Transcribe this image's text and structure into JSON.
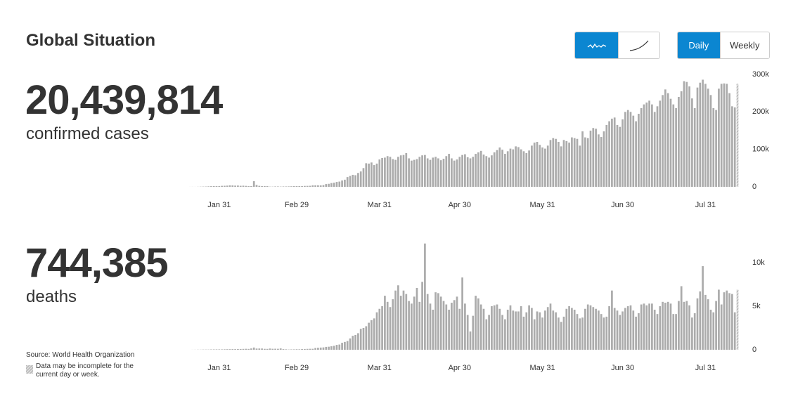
{
  "header": {
    "title": "Global Situation"
  },
  "controls": {
    "periods": [
      "Daily",
      "Weekly"
    ]
  },
  "chart_data": [
    {
      "type": "bar",
      "total": "20,439,814",
      "label": "confirmed cases",
      "color": "#ababab",
      "categories": [
        null,
        null,
        null,
        null,
        null,
        null,
        null,
        null,
        null,
        null,
        null,
        "Jan 31",
        null,
        null,
        null,
        null,
        null,
        null,
        null,
        null,
        null,
        null,
        null,
        null,
        null,
        null,
        null,
        null,
        null,
        null,
        null,
        null,
        null,
        null,
        null,
        null,
        null,
        null,
        null,
        null,
        "Feb 29",
        null,
        null,
        null,
        null,
        null,
        null,
        null,
        null,
        null,
        null,
        null,
        null,
        null,
        null,
        null,
        null,
        null,
        null,
        null,
        null,
        null,
        null,
        null,
        null,
        null,
        null,
        null,
        null,
        null,
        null,
        "Mar 31",
        null,
        null,
        null,
        null,
        null,
        null,
        null,
        null,
        null,
        null,
        null,
        null,
        null,
        null,
        null,
        null,
        null,
        null,
        null,
        null,
        null,
        null,
        null,
        null,
        null,
        null,
        null,
        null,
        null,
        "Apr 30",
        null,
        null,
        null,
        null,
        null,
        null,
        null,
        null,
        null,
        null,
        null,
        null,
        null,
        null,
        null,
        null,
        null,
        null,
        null,
        null,
        null,
        null,
        null,
        null,
        null,
        null,
        null,
        null,
        null,
        null,
        "May 31",
        null,
        null,
        null,
        null,
        null,
        null,
        null,
        null,
        null,
        null,
        null,
        null,
        null,
        null,
        null,
        null,
        null,
        null,
        null,
        null,
        null,
        null,
        null,
        null,
        null,
        null,
        null,
        null,
        null,
        "Jun 30",
        null,
        null,
        null,
        null,
        null,
        null,
        null,
        null,
        null,
        null,
        null,
        null,
        null,
        null,
        null,
        null,
        null,
        null,
        null,
        null,
        null,
        null,
        null,
        null,
        null,
        null,
        null,
        null,
        null,
        null,
        "Jul 31",
        null,
        null,
        null,
        null,
        null,
        null,
        null,
        null,
        null,
        null,
        null,
        null
      ],
      "values": [
        100,
        150,
        100,
        250,
        500,
        700,
        800,
        1300,
        1700,
        2000,
        2100,
        2100,
        2600,
        2800,
        3200,
        3900,
        3700,
        3200,
        3400,
        2700,
        3000,
        2500,
        2000,
        2000,
        15000,
        5000,
        2600,
        2000,
        2100,
        1900,
        600,
        600,
        1000,
        1000,
        700,
        1000,
        1000,
        1200,
        1500,
        1800,
        2000,
        1900,
        2000,
        2400,
        2500,
        2700,
        4000,
        4000,
        4000,
        3800,
        4600,
        7300,
        8000,
        10000,
        11000,
        13000,
        14000,
        17000,
        19000,
        26000,
        29000,
        32000,
        31000,
        37000,
        41000,
        50000,
        63000,
        62000,
        65000,
        58000,
        62000,
        73000,
        77000,
        78000,
        82000,
        80000,
        74000,
        72000,
        80000,
        84000,
        85000,
        90000,
        76000,
        70000,
        72000,
        74000,
        80000,
        84000,
        85000,
        76000,
        72000,
        78000,
        80000,
        76000,
        71000,
        75000,
        82000,
        88000,
        76000,
        70000,
        73000,
        80000,
        85000,
        87000,
        79000,
        76000,
        80000,
        88000,
        92000,
        96000,
        86000,
        82000,
        78000,
        84000,
        92000,
        98000,
        105000,
        99000,
        88000,
        95000,
        102000,
        100000,
        108000,
        106000,
        100000,
        95000,
        90000,
        97000,
        110000,
        118000,
        120000,
        112000,
        105000,
        102000,
        110000,
        125000,
        130000,
        128000,
        120000,
        108000,
        125000,
        122000,
        118000,
        132000,
        130000,
        128000,
        110000,
        148000,
        132000,
        130000,
        150000,
        157000,
        155000,
        140000,
        133000,
        148000,
        165000,
        175000,
        182000,
        185000,
        165000,
        160000,
        180000,
        200000,
        205000,
        200000,
        190000,
        175000,
        195000,
        210000,
        220000,
        225000,
        230000,
        220000,
        200000,
        215000,
        230000,
        245000,
        260000,
        250000,
        235000,
        220000,
        210000,
        240000,
        255000,
        282000,
        280000,
        268000,
        236000,
        210000,
        265000,
        278000,
        286000,
        275000,
        262000,
        245000,
        210000,
        205000,
        262000,
        275000,
        276000,
        275000,
        250000,
        215000,
        212000,
        275000
      ],
      "ylim": [
        0,
        300000
      ],
      "yticks": [
        0,
        {
          "value": 100000,
          "label": "100k"
        },
        {
          "value": 200000,
          "label": "200k"
        },
        {
          "value": 300000,
          "label": "300k"
        }
      ]
    },
    {
      "type": "bar",
      "total": "744,385",
      "label": "deaths",
      "color": "#ababab",
      "categories": [
        null,
        null,
        null,
        null,
        null,
        null,
        null,
        null,
        null,
        null,
        null,
        "Jan 31",
        null,
        null,
        null,
        null,
        null,
        null,
        null,
        null,
        null,
        null,
        null,
        null,
        null,
        null,
        null,
        null,
        null,
        null,
        null,
        null,
        null,
        null,
        null,
        null,
        null,
        null,
        null,
        null,
        "Feb 29",
        null,
        null,
        null,
        null,
        null,
        null,
        null,
        null,
        null,
        null,
        null,
        null,
        null,
        null,
        null,
        null,
        null,
        null,
        null,
        null,
        null,
        null,
        null,
        null,
        null,
        null,
        null,
        null,
        null,
        null,
        "Mar 31",
        null,
        null,
        null,
        null,
        null,
        null,
        null,
        null,
        null,
        null,
        null,
        null,
        null,
        null,
        null,
        null,
        null,
        null,
        null,
        null,
        null,
        null,
        null,
        null,
        null,
        null,
        null,
        null,
        null,
        "Apr 30",
        null,
        null,
        null,
        null,
        null,
        null,
        null,
        null,
        null,
        null,
        null,
        null,
        null,
        null,
        null,
        null,
        null,
        null,
        null,
        null,
        null,
        null,
        null,
        null,
        null,
        null,
        null,
        null,
        null,
        null,
        "May 31",
        null,
        null,
        null,
        null,
        null,
        null,
        null,
        null,
        null,
        null,
        null,
        null,
        null,
        null,
        null,
        null,
        null,
        null,
        null,
        null,
        null,
        null,
        null,
        null,
        null,
        null,
        null,
        null,
        null,
        "Jun 30",
        null,
        null,
        null,
        null,
        null,
        null,
        null,
        null,
        null,
        null,
        null,
        null,
        null,
        null,
        null,
        null,
        null,
        null,
        null,
        null,
        null,
        null,
        null,
        null,
        null,
        null,
        null,
        null,
        null,
        null,
        "Jul 31",
        null,
        null,
        null,
        null,
        null,
        null,
        null,
        null,
        null,
        null,
        null,
        null
      ],
      "values": [
        0,
        5,
        8,
        15,
        15,
        25,
        25,
        26,
        38,
        43,
        46,
        46,
        45,
        57,
        64,
        66,
        73,
        73,
        86,
        89,
        97,
        108,
        97,
        150,
        254,
        140,
        143,
        142,
        105,
        98,
        139,
        112,
        118,
        109,
        150,
        71,
        52,
        29,
        44,
        47,
        60,
        55,
        80,
        90,
        100,
        110,
        110,
        200,
        230,
        250,
        270,
        330,
        350,
        400,
        450,
        560,
        600,
        800,
        900,
        1000,
        1300,
        1600,
        1700,
        1900,
        2400,
        2500,
        2700,
        3100,
        3400,
        3600,
        4300,
        4700,
        5000,
        6200,
        5500,
        4900,
        5800,
        6800,
        7400,
        6200,
        6800,
        6400,
        5600,
        5300,
        6100,
        7100,
        5500,
        7800,
        12200,
        6400,
        5300,
        4600,
        6600,
        6500,
        6100,
        5600,
        5200,
        4600,
        5400,
        5700,
        6100,
        4700,
        8300,
        5300,
        4000,
        2100,
        3900,
        6200,
        5900,
        5200,
        4700,
        3500,
        4000,
        5000,
        5100,
        5200,
        4700,
        4000,
        3500,
        4600,
        5100,
        4500,
        4400,
        4400,
        5000,
        3800,
        4300,
        5100,
        4800,
        3500,
        4400,
        4300,
        3700,
        4500,
        4900,
        5300,
        4500,
        4300,
        3700,
        3200,
        3800,
        4700,
        5000,
        4800,
        4600,
        4100,
        3600,
        3700,
        4700,
        5200,
        5100,
        4900,
        4700,
        4500,
        4100,
        3700,
        3800,
        5000,
        6800,
        4800,
        4500,
        4000,
        4400,
        4800,
        5000,
        5100,
        4500,
        3800,
        4200,
        5200,
        5300,
        5100,
        5300,
        5300,
        4600,
        4100,
        5000,
        5500,
        5400,
        5500,
        5300,
        4100,
        4100,
        5600,
        7300,
        5500,
        5600,
        5100,
        3700,
        4200,
        5900,
        6700,
        9600,
        6300,
        5800,
        4600,
        4300,
        5600,
        6900,
        5200,
        6600,
        6800,
        6500,
        6400,
        4300,
        6900
      ],
      "ylim": [
        0,
        13000
      ],
      "yticks": [
        0,
        {
          "value": 5000,
          "label": "5k"
        },
        {
          "value": 10000,
          "label": "10k"
        }
      ]
    }
  ],
  "footer": {
    "source": "Source:  World Health Organization",
    "note": "Data may be incomplete for the current day or week."
  }
}
